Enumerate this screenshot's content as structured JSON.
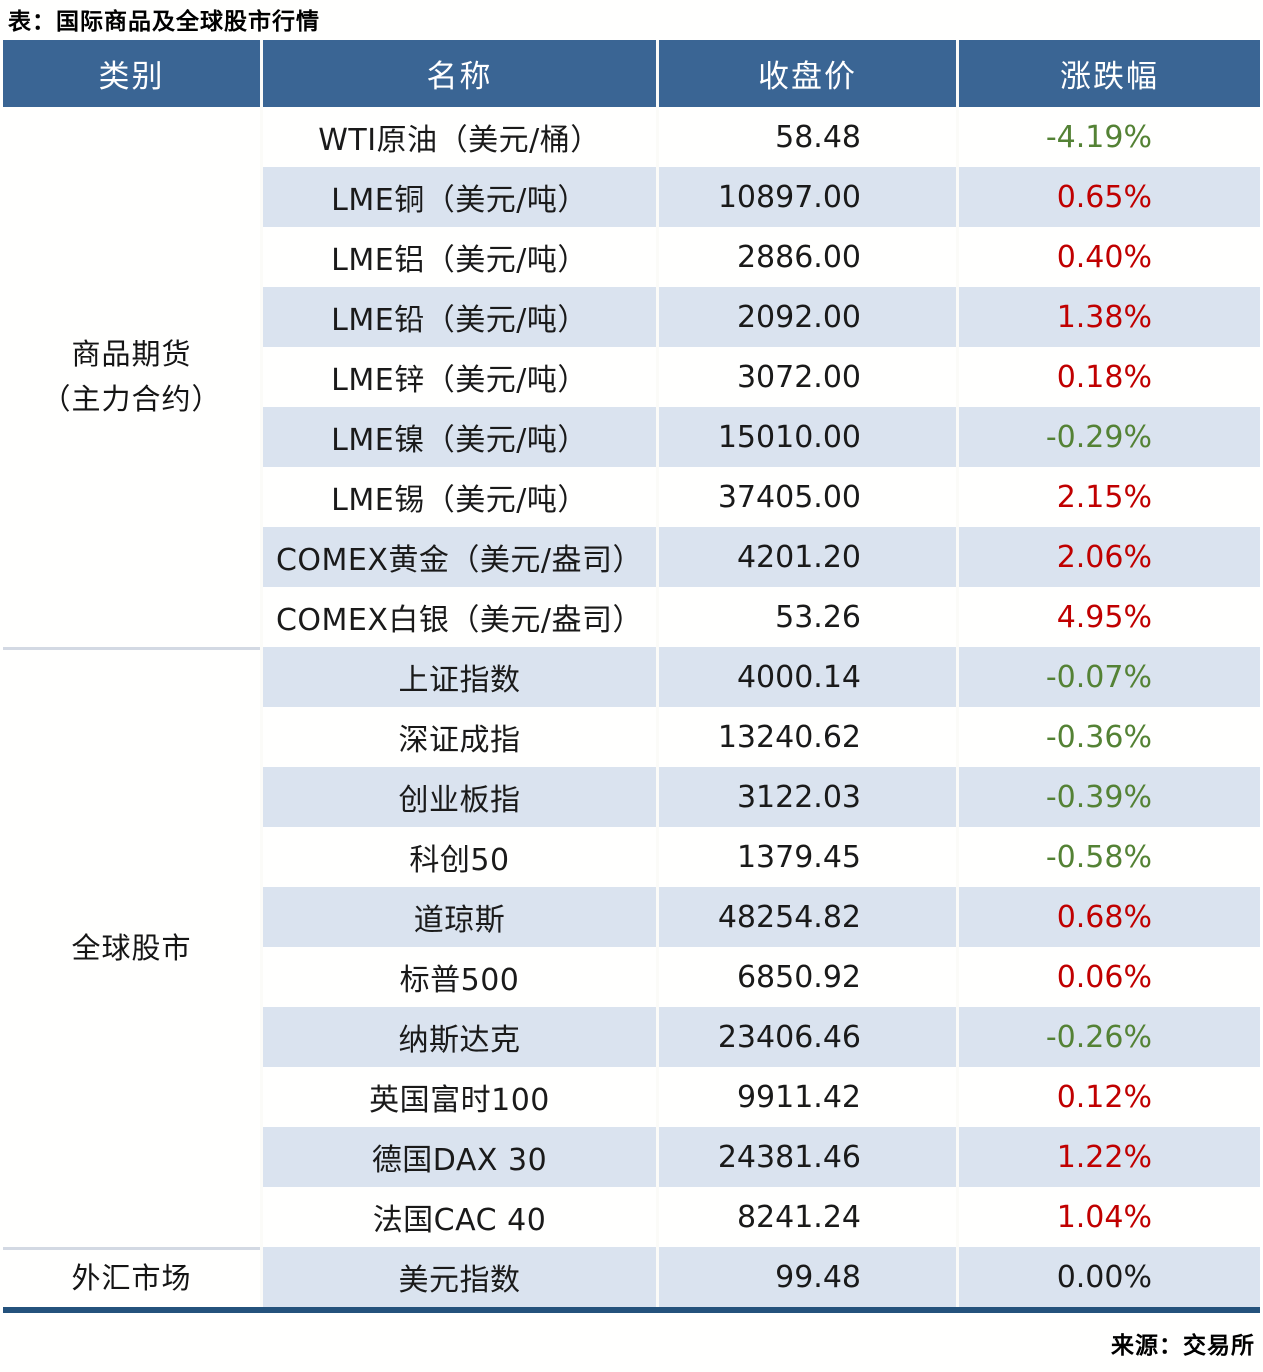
{
  "title": "表：国际商品及全球股市行情",
  "source": "来源：交易所",
  "colors": {
    "header_bg": "#3A6594",
    "alt_row_bg": "#DAE3EF",
    "positive_red": "#C00000",
    "negative_green": "#548235",
    "zero_black": "#1A1A1A",
    "bottom_border": "#24527C",
    "section_divider": "#D3D9E3"
  },
  "table": {
    "headers": [
      "类别",
      "名称",
      "收盘价",
      "涨跌幅"
    ],
    "sections": [
      {
        "category_lines": [
          "商品期货",
          "（主力合约）"
        ],
        "rows": [
          {
            "name": "WTI原油（美元/桶）",
            "close": "58.48",
            "change": "-4.19%",
            "direction": "down"
          },
          {
            "name": "LME铜（美元/吨）",
            "close": "10897.00",
            "change": "0.65%",
            "direction": "up"
          },
          {
            "name": "LME铝（美元/吨）",
            "close": "2886.00",
            "change": "0.40%",
            "direction": "up"
          },
          {
            "name": "LME铅（美元/吨）",
            "close": "2092.00",
            "change": "1.38%",
            "direction": "up"
          },
          {
            "name": "LME锌（美元/吨）",
            "close": "3072.00",
            "change": "0.18%",
            "direction": "up"
          },
          {
            "name": "LME镍（美元/吨）",
            "close": "15010.00",
            "change": "-0.29%",
            "direction": "down"
          },
          {
            "name": "LME锡（美元/吨）",
            "close": "37405.00",
            "change": "2.15%",
            "direction": "up"
          },
          {
            "name": "COMEX黄金（美元/盎司）",
            "close": "4201.20",
            "change": "2.06%",
            "direction": "up"
          },
          {
            "name": "COMEX白银（美元/盎司）",
            "close": "53.26",
            "change": "4.95%",
            "direction": "up"
          }
        ]
      },
      {
        "category_lines": [
          "全球股市"
        ],
        "rows": [
          {
            "name": "上证指数",
            "close": "4000.14",
            "change": "-0.07%",
            "direction": "down"
          },
          {
            "name": "深证成指",
            "close": "13240.62",
            "change": "-0.36%",
            "direction": "down"
          },
          {
            "name": "创业板指",
            "close": "3122.03",
            "change": "-0.39%",
            "direction": "down"
          },
          {
            "name": "科创50",
            "close": "1379.45",
            "change": "-0.58%",
            "direction": "down"
          },
          {
            "name": "道琼斯",
            "close": "48254.82",
            "change": "0.68%",
            "direction": "up"
          },
          {
            "name": "标普500",
            "close": "6850.92",
            "change": "0.06%",
            "direction": "up"
          },
          {
            "name": "纳斯达克",
            "close": "23406.46",
            "change": "-0.26%",
            "direction": "down"
          },
          {
            "name": "英国富时100",
            "close": "9911.42",
            "change": "0.12%",
            "direction": "up"
          },
          {
            "name": "德国DAX 30",
            "close": "24381.46",
            "change": "1.22%",
            "direction": "up"
          },
          {
            "name": "法国CAC 40",
            "close": "8241.24",
            "change": "1.04%",
            "direction": "up"
          }
        ]
      },
      {
        "category_lines": [
          "外汇市场"
        ],
        "rows": [
          {
            "name": "美元指数",
            "close": "99.48",
            "change": "0.00%",
            "direction": "flat"
          }
        ]
      }
    ]
  },
  "chart_data": {
    "type": "table",
    "title": "表：国际商品及全球股市行情",
    "columns": [
      "类别",
      "名称",
      "收盘价",
      "涨跌幅"
    ],
    "rows": [
      [
        "商品期货（主力合约）",
        "WTI原油（美元/桶）",
        58.48,
        "-4.19%"
      ],
      [
        "商品期货（主力合约）",
        "LME铜（美元/吨）",
        10897.0,
        "0.65%"
      ],
      [
        "商品期货（主力合约）",
        "LME铝（美元/吨）",
        2886.0,
        "0.40%"
      ],
      [
        "商品期货（主力合约）",
        "LME铅（美元/吨）",
        2092.0,
        "1.38%"
      ],
      [
        "商品期货（主力合约）",
        "LME锌（美元/吨）",
        3072.0,
        "0.18%"
      ],
      [
        "商品期货（主力合约）",
        "LME镍（美元/吨）",
        15010.0,
        "-0.29%"
      ],
      [
        "商品期货（主力合约）",
        "LME锡（美元/吨）",
        37405.0,
        "2.15%"
      ],
      [
        "商品期货（主力合约）",
        "COMEX黄金（美元/盎司）",
        4201.2,
        "2.06%"
      ],
      [
        "商品期货（主力合约）",
        "COMEX白银（美元/盎司）",
        53.26,
        "4.95%"
      ],
      [
        "全球股市",
        "上证指数",
        4000.14,
        "-0.07%"
      ],
      [
        "全球股市",
        "深证成指",
        13240.62,
        "-0.36%"
      ],
      [
        "全球股市",
        "创业板指",
        3122.03,
        "-0.39%"
      ],
      [
        "全球股市",
        "科创50",
        1379.45,
        "-0.58%"
      ],
      [
        "全球股市",
        "道琼斯",
        48254.82,
        "0.68%"
      ],
      [
        "全球股市",
        "标普500",
        6850.92,
        "0.06%"
      ],
      [
        "全球股市",
        "纳斯达克",
        23406.46,
        "-0.26%"
      ],
      [
        "全球股市",
        "英国富时100",
        9911.42,
        "0.12%"
      ],
      [
        "全球股市",
        "德国DAX 30",
        24381.46,
        "1.22%"
      ],
      [
        "全球股市",
        "法国CAC 40",
        8241.24,
        "1.04%"
      ],
      [
        "外汇市场",
        "美元指数",
        99.48,
        "0.00%"
      ]
    ],
    "source": "来源：交易所",
    "color_rule": "positive=red(#C00000), negative=green(#548235), zero=black"
  }
}
